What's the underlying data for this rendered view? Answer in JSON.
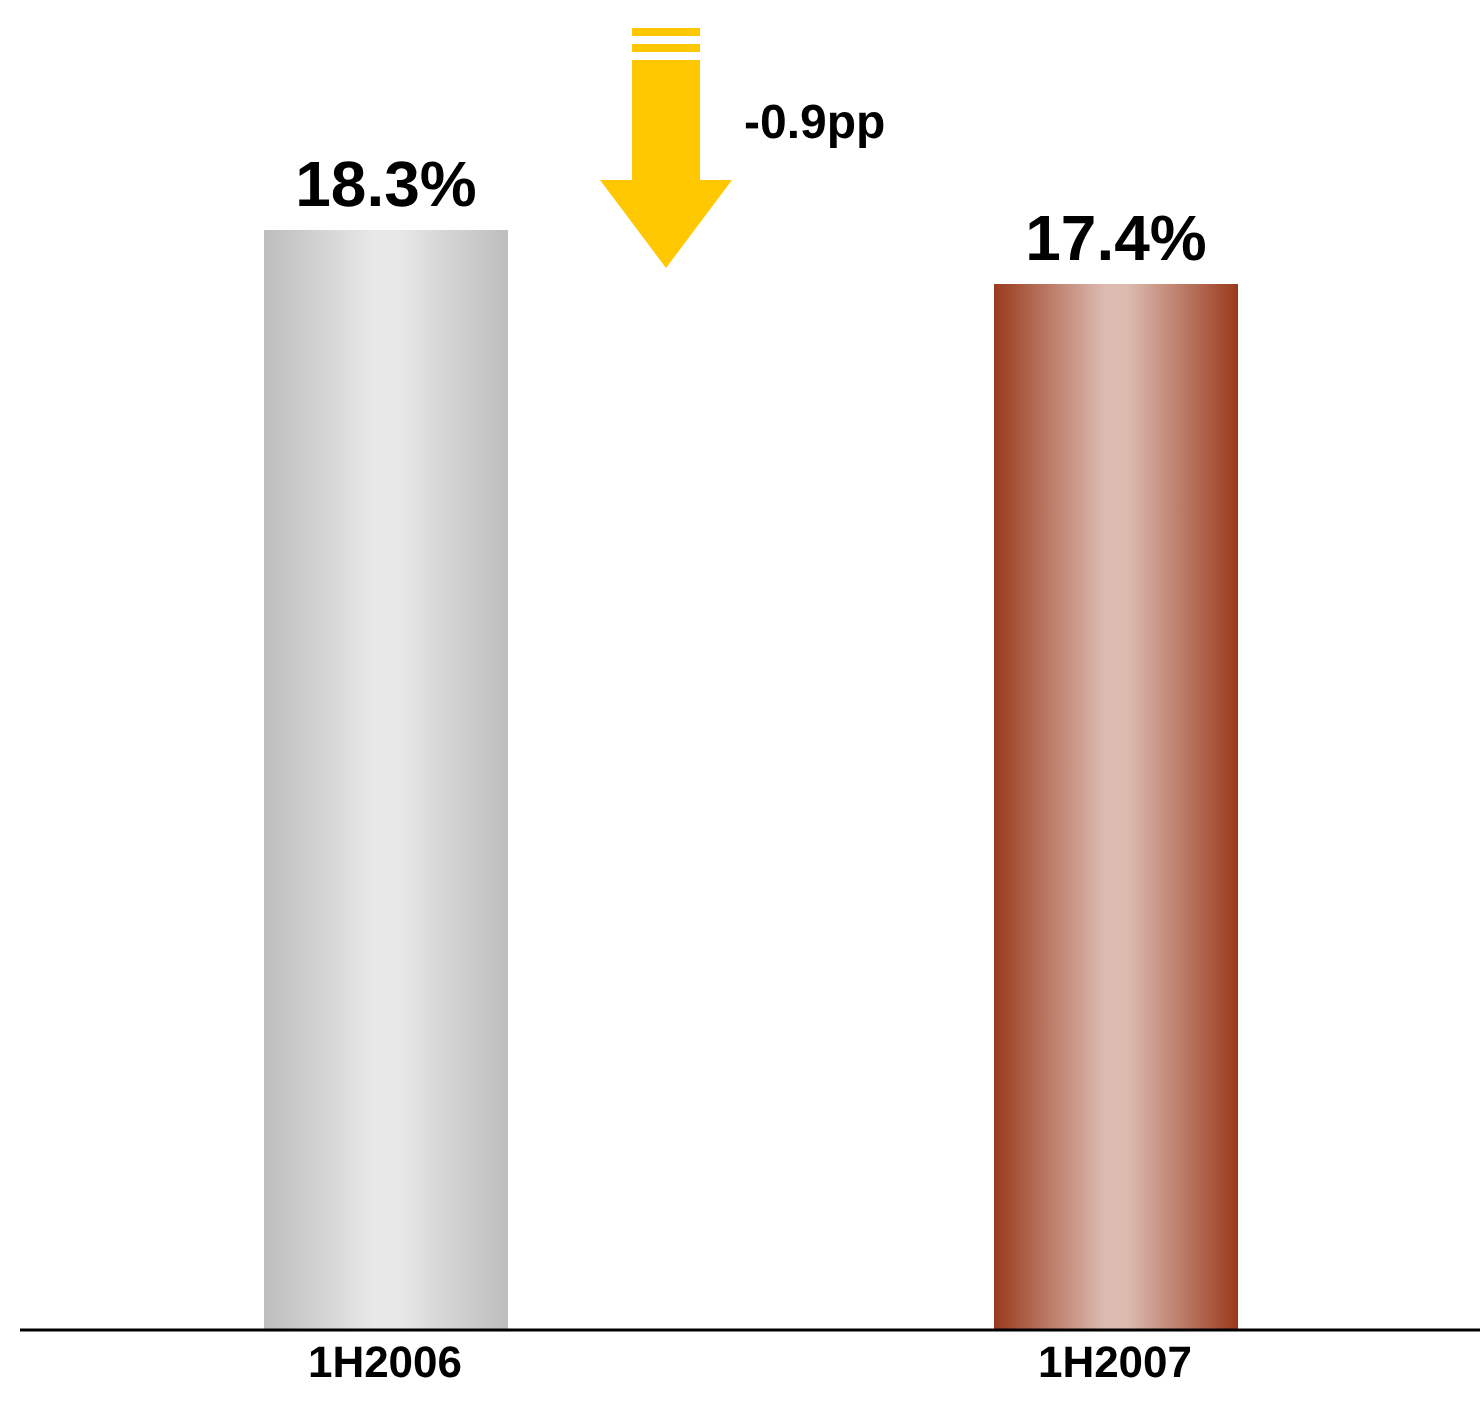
{
  "chart_data": {
    "type": "bar",
    "categories": [
      "1H2006",
      "1H2007"
    ],
    "values": [
      18.3,
      17.4
    ],
    "value_labels": [
      "18.3%",
      "17.4%"
    ],
    "colors": [
      "#bdbdbd",
      "#9a3a1c"
    ],
    "tick_labels": "x",
    "annotations": [
      "-0.9pp"
    ]
  }
}
